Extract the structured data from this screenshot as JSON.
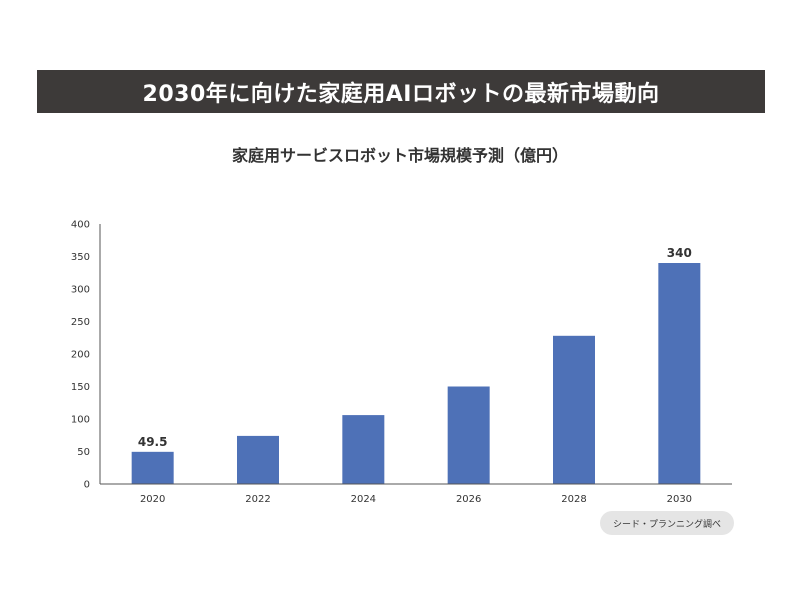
{
  "header": {
    "title": "2030年に向けた家庭用AIロボットの最新市場動向"
  },
  "source": {
    "label": "シード・プランニング調べ"
  },
  "colors": {
    "banner": "#3d3a39",
    "bar": "#4e71b7",
    "axis": "#555555",
    "source_badge": "#e5e5e5"
  },
  "chart_data": {
    "type": "bar",
    "title": "家庭用サービスロボット市場規模予測（億円）",
    "categories": [
      "2020",
      "2022",
      "2024",
      "2026",
      "2028",
      "2030"
    ],
    "values": [
      49.5,
      74,
      106,
      150,
      228,
      340
    ],
    "data_labels": [
      "49.5",
      "",
      "",
      "",
      "",
      "340"
    ],
    "ylim": [
      0,
      400
    ],
    "yticks": [
      0,
      50,
      100,
      150,
      200,
      250,
      300,
      350,
      400
    ],
    "xlabel": "",
    "ylabel": "",
    "grid": false
  }
}
